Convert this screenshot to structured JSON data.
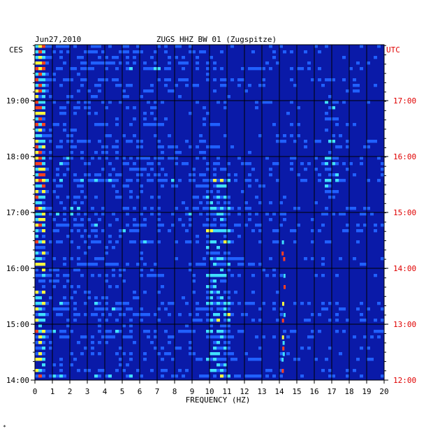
{
  "chart_data": {
    "type": "heatmap",
    "title_left": "Jun27,2010",
    "title_center": "ZUGS HHZ BW 01 (Zugspitze)",
    "left_axis_label": "CES",
    "right_axis_label": "UTC",
    "xlabel": "FREQUENCY (HZ)",
    "xlim": [
      0,
      20
    ],
    "x_ticks": [
      "0",
      "1",
      "2",
      "3",
      "4",
      "5",
      "6",
      "7",
      "8",
      "9",
      "10",
      "11",
      "12",
      "13",
      "14",
      "15",
      "16",
      "17",
      "18",
      "19",
      "20"
    ],
    "left_ticks": [
      "14:00",
      "15:00",
      "16:00",
      "17:00",
      "18:00",
      "19:00"
    ],
    "right_ticks": [
      "12:00",
      "13:00",
      "14:00",
      "15:00",
      "16:00",
      "17:00"
    ],
    "colors": {
      "background": "#0a1aa8",
      "low": "#0000c0",
      "mid": "#2060ff",
      "high": "#40e0ff",
      "peak": "#ffff40",
      "hot": "#ff4020",
      "utc_label": "#e00000",
      "grid": "#000000"
    },
    "features": {
      "low_frequency_energy_hz": [
        0,
        0.6
      ],
      "tremor_band_hz": [
        9.8,
        11.2
      ],
      "tremor_time_window_ces": [
        "14:00",
        "17:30"
      ],
      "narrow_line_hz": 14.2,
      "narrow_line_time_window_ces": [
        "14:00",
        "16:30"
      ],
      "burst_hz": 17.0,
      "burst_time_ces": "18:30"
    }
  },
  "footer_mark": "*"
}
